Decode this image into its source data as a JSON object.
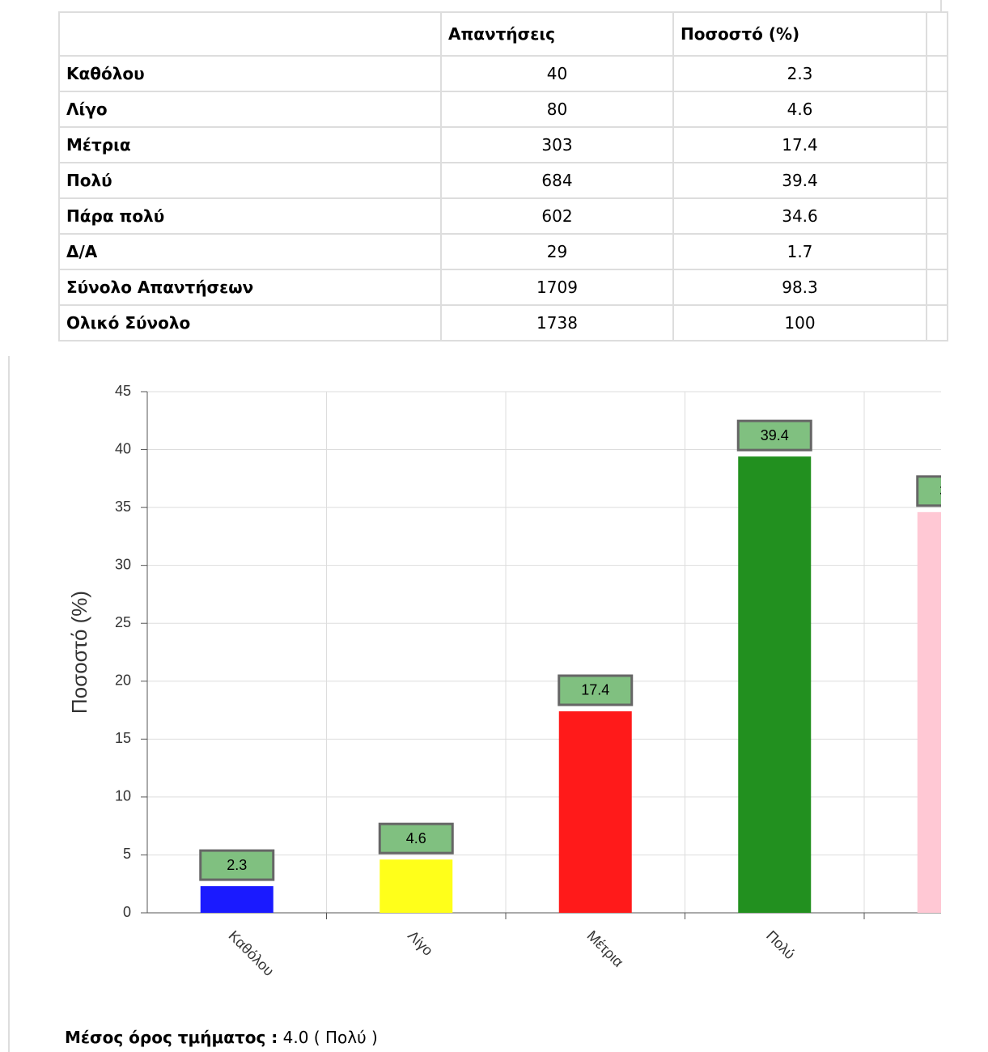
{
  "table": {
    "header": [
      "",
      "Απαντήσεις",
      "Ποσοστό (%)"
    ],
    "rows": [
      [
        "Καθόλου",
        40,
        2.3
      ],
      [
        "Λίγο",
        80,
        4.6
      ],
      [
        "Μέτρια",
        303,
        17.4
      ],
      [
        "Πολύ",
        684,
        39.4
      ],
      [
        "Πάρα πολύ",
        602,
        34.6
      ],
      [
        "Δ/Α",
        29,
        1.7
      ],
      [
        "Σύνολο Απαντήσεων",
        1709,
        98.3
      ],
      [
        "Ολικό Σύνολο",
        1738,
        100
      ]
    ]
  },
  "chart_data": {
    "type": "bar",
    "y_label": "Ποσοστό (%)",
    "categories": [
      "Καθόλου",
      "Λίγο",
      "Μέτρια",
      "Πολύ",
      null
    ],
    "values": [
      2.3,
      4.6,
      17.4,
      39.4,
      34.6
    ],
    "colors": [
      "#1a1aff",
      "#ffff1a",
      "#ff1a1a",
      "#22901f",
      "#ffc8d4"
    ],
    "label_color": "#80c080",
    "ylim": [
      0,
      45
    ],
    "yticks": [
      0,
      5,
      10,
      15,
      20,
      25,
      30,
      35,
      40,
      45
    ],
    "grid": true
  },
  "footer": {
    "label": "Μέσος όρος τμήματος :",
    "value": "4.0 ( Πολύ )"
  }
}
